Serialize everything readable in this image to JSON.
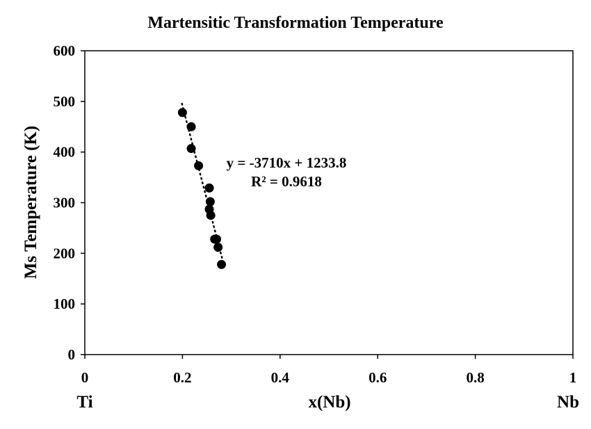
{
  "chart_data": {
    "type": "scatter",
    "title": "Martensitic Transformation Temperature",
    "xlabel": "x(Nb)",
    "ylabel": "Ms Temperature (K)",
    "x_endpoint_labels": {
      "left": "Ti",
      "right": "Nb"
    },
    "xlim": [
      0,
      1
    ],
    "ylim": [
      0,
      600
    ],
    "xticks": [
      "0",
      "0.2",
      "0.4",
      "0.6",
      "0.8",
      "1"
    ],
    "yticks": [
      "0",
      "100",
      "200",
      "300",
      "400",
      "500",
      "600"
    ],
    "grid": false,
    "legend": "none",
    "marker_color": "#000000",
    "points": [
      {
        "x": 0.2,
        "y": 478
      },
      {
        "x": 0.218,
        "y": 450
      },
      {
        "x": 0.218,
        "y": 407
      },
      {
        "x": 0.233,
        "y": 373
      },
      {
        "x": 0.255,
        "y": 329
      },
      {
        "x": 0.257,
        "y": 302
      },
      {
        "x": 0.255,
        "y": 287
      },
      {
        "x": 0.258,
        "y": 275
      },
      {
        "x": 0.266,
        "y": 228
      },
      {
        "x": 0.27,
        "y": 228
      },
      {
        "x": 0.273,
        "y": 212
      },
      {
        "x": 0.28,
        "y": 178
      }
    ],
    "trendline": {
      "style": "dotted",
      "slope": -3710,
      "intercept": 1233.8,
      "x_range": [
        0.199,
        0.285
      ],
      "equation_text": "y = -3710x + 1233.8",
      "r2_text": "R² = 0.9618"
    }
  }
}
